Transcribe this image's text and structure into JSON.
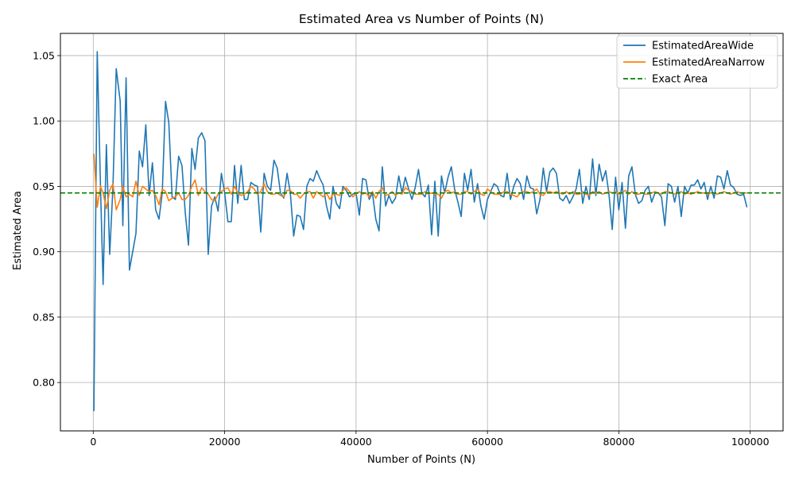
{
  "chart_data": {
    "type": "line",
    "title": "Estimated Area vs Number of Points (N)",
    "xlabel": "Number of Points (N)",
    "ylabel": "Estimated Area",
    "xlim": [
      -5000,
      105000
    ],
    "ylim": [
      0.763,
      1.067
    ],
    "xticks": [
      0,
      20000,
      40000,
      60000,
      80000,
      100000
    ],
    "xtick_labels": [
      "0",
      "20000",
      "40000",
      "60000",
      "80000",
      "100000"
    ],
    "yticks": [
      0.8,
      0.85,
      0.9,
      0.95,
      1.0,
      1.05
    ],
    "ytick_labels": [
      "0.80",
      "0.85",
      "0.90",
      "0.95",
      "1.00",
      "1.05"
    ],
    "grid": true,
    "legend_position": "top-right",
    "series": [
      {
        "name": "EstimatedAreaWide",
        "color": "#1f77b4",
        "style": "solid",
        "x": [
          100,
          600,
          1100,
          1500,
          2000,
          2500,
          3000,
          3500,
          4100,
          4500,
          5000,
          5500,
          6000,
          6500,
          7000,
          7500,
          8000,
          8500,
          9000,
          9500,
          10000,
          10500,
          11000,
          11500,
          12000,
          12500,
          13000,
          13500,
          14000,
          14500,
          15000,
          15500,
          16000,
          16500,
          17000,
          17500,
          18000,
          18500,
          19000,
          19500,
          20000,
          20500,
          21000,
          21500,
          22000,
          22500,
          23000,
          23500,
          24000,
          24500,
          25000,
          25500,
          26000,
          26500,
          27000,
          27500,
          28000,
          28500,
          29000,
          29500,
          30000,
          30500,
          31000,
          31500,
          32000,
          32500,
          33000,
          33500,
          34000,
          34500,
          35000,
          35500,
          36000,
          36500,
          37000,
          37500,
          38000,
          38500,
          39000,
          39500,
          40000,
          40500,
          41000,
          41500,
          42000,
          42500,
          43000,
          43500,
          44000,
          44500,
          45000,
          45500,
          46000,
          46500,
          47000,
          47500,
          48000,
          48500,
          49000,
          49500,
          50000,
          50500,
          51000,
          51500,
          52000,
          52500,
          53000,
          53500,
          54000,
          54500,
          55000,
          55500,
          56000,
          56500,
          57000,
          57500,
          58000,
          58500,
          59000,
          59500,
          60000,
          60500,
          61000,
          61500,
          62000,
          62500,
          63000,
          63500,
          64000,
          64500,
          65000,
          65500,
          66000,
          66500,
          67000,
          67500,
          68000,
          68500,
          69000,
          69500,
          70000,
          70500,
          71000,
          71500,
          72000,
          72500,
          73000,
          73500,
          74000,
          74500,
          75000,
          75500,
          76000,
          76500,
          77000,
          77500,
          78000,
          78500,
          79000,
          79500,
          80000,
          80500,
          81000,
          81500,
          82000,
          82500,
          83000,
          83500,
          84000,
          84500,
          85000,
          85500,
          86000,
          86500,
          87000,
          87500,
          88000,
          88500,
          89000,
          89500,
          90000,
          90500,
          91000,
          91500,
          92000,
          92500,
          93000,
          93500,
          94000,
          94500,
          95000,
          95500,
          96000,
          96500,
          97000,
          97500,
          98000,
          98500,
          99000,
          99500
        ],
        "values": [
          0.778,
          1.053,
          0.95,
          0.875,
          0.982,
          0.898,
          0.95,
          1.04,
          1.015,
          0.92,
          1.033,
          0.886,
          0.9,
          0.914,
          0.977,
          0.965,
          0.997,
          0.943,
          0.968,
          0.932,
          0.925,
          0.945,
          1.015,
          0.999,
          0.942,
          0.94,
          0.973,
          0.966,
          0.93,
          0.905,
          0.979,
          0.963,
          0.987,
          0.991,
          0.985,
          0.898,
          0.935,
          0.942,
          0.931,
          0.96,
          0.945,
          0.923,
          0.923,
          0.966,
          0.937,
          0.966,
          0.94,
          0.94,
          0.953,
          0.951,
          0.95,
          0.915,
          0.96,
          0.95,
          0.947,
          0.97,
          0.964,
          0.945,
          0.941,
          0.96,
          0.945,
          0.912,
          0.928,
          0.927,
          0.917,
          0.95,
          0.956,
          0.954,
          0.962,
          0.956,
          0.951,
          0.935,
          0.925,
          0.95,
          0.937,
          0.933,
          0.95,
          0.947,
          0.942,
          0.944,
          0.945,
          0.928,
          0.956,
          0.955,
          0.94,
          0.945,
          0.925,
          0.916,
          0.965,
          0.935,
          0.943,
          0.937,
          0.941,
          0.958,
          0.945,
          0.957,
          0.948,
          0.94,
          0.949,
          0.963,
          0.945,
          0.942,
          0.951,
          0.913,
          0.954,
          0.912,
          0.958,
          0.945,
          0.957,
          0.965,
          0.948,
          0.938,
          0.927,
          0.96,
          0.947,
          0.963,
          0.938,
          0.952,
          0.935,
          0.925,
          0.94,
          0.946,
          0.952,
          0.95,
          0.943,
          0.942,
          0.96,
          0.94,
          0.95,
          0.956,
          0.952,
          0.94,
          0.958,
          0.949,
          0.948,
          0.929,
          0.94,
          0.964,
          0.946,
          0.961,
          0.964,
          0.96,
          0.941,
          0.939,
          0.943,
          0.937,
          0.942,
          0.948,
          0.963,
          0.937,
          0.95,
          0.94,
          0.971,
          0.943,
          0.967,
          0.954,
          0.962,
          0.944,
          0.917,
          0.957,
          0.932,
          0.953,
          0.918,
          0.958,
          0.965,
          0.944,
          0.937,
          0.939,
          0.947,
          0.95,
          0.938,
          0.945,
          0.945,
          0.942,
          0.92,
          0.952,
          0.95,
          0.938,
          0.95,
          0.927,
          0.95,
          0.945,
          0.951,
          0.951,
          0.955,
          0.948,
          0.953,
          0.94,
          0.95,
          0.941,
          0.958,
          0.957,
          0.948,
          0.962,
          0.951,
          0.949,
          0.944,
          0.943,
          0.944,
          0.934
        ]
      },
      {
        "name": "EstimatedAreaNarrow",
        "color": "#ff7f0e",
        "style": "solid",
        "x": [
          100,
          600,
          1100,
          1500,
          2000,
          2500,
          3000,
          3500,
          4100,
          4500,
          5000,
          5500,
          6000,
          6500,
          7000,
          7500,
          8000,
          8500,
          9000,
          9500,
          10000,
          10500,
          11000,
          11500,
          12000,
          12500,
          13000,
          13500,
          14000,
          14500,
          15000,
          15500,
          16000,
          16500,
          17000,
          17500,
          18000,
          18500,
          19000,
          19500,
          20000,
          20500,
          21000,
          21500,
          22000,
          22500,
          23000,
          23500,
          24000,
          24500,
          25000,
          25500,
          26000,
          26500,
          27000,
          27500,
          28000,
          28500,
          29000,
          29500,
          30000,
          30500,
          31000,
          31500,
          32000,
          32500,
          33000,
          33500,
          34000,
          34500,
          35000,
          35500,
          36000,
          36500,
          37000,
          37500,
          38000,
          38500,
          39000,
          39500,
          40000,
          40500,
          41000,
          41500,
          42000,
          42500,
          43000,
          43500,
          44000,
          44500,
          45000,
          45500,
          46000,
          46500,
          47000,
          47500,
          48000,
          48500,
          49000,
          49500,
          50000,
          50500,
          51000,
          51500,
          52000,
          52500,
          53000,
          53500,
          54000,
          54500,
          55000,
          55500,
          56000,
          56500,
          57000,
          57500,
          58000,
          58500,
          59000,
          59500,
          60000,
          60500,
          61000,
          61500,
          62000,
          62500,
          63000,
          63500,
          64000,
          64500,
          65000,
          65500,
          66000,
          66500,
          67000,
          67500,
          68000,
          68500,
          69000,
          69500,
          70000,
          70500,
          71000,
          71500,
          72000,
          72500,
          73000,
          73500,
          74000,
          74500,
          75000,
          75500,
          76000,
          76500,
          77000,
          77500,
          78000,
          78500,
          79000,
          79500,
          80000,
          80500,
          81000,
          81500,
          82000,
          82500,
          83000,
          83500,
          84000,
          84500,
          85000,
          85500,
          86000,
          86500,
          87000,
          87500,
          88000,
          88500,
          89000,
          89500,
          90000,
          90500,
          91000,
          91500,
          92000,
          92500,
          93000,
          93500,
          94000,
          94500,
          95000,
          95500,
          96000,
          96500,
          97000,
          97500,
          98000,
          98500,
          99000,
          99500
        ],
        "values": [
          0.975,
          0.934,
          0.95,
          0.945,
          0.933,
          0.947,
          0.952,
          0.932,
          0.94,
          0.95,
          0.942,
          0.944,
          0.942,
          0.954,
          0.943,
          0.95,
          0.948,
          0.946,
          0.947,
          0.943,
          0.936,
          0.948,
          0.946,
          0.939,
          0.941,
          0.942,
          0.945,
          0.94,
          0.94,
          0.943,
          0.95,
          0.955,
          0.943,
          0.949,
          0.946,
          0.944,
          0.94,
          0.939,
          0.944,
          0.946,
          0.948,
          0.949,
          0.944,
          0.95,
          0.945,
          0.943,
          0.944,
          0.946,
          0.95,
          0.948,
          0.944,
          0.946,
          0.952,
          0.946,
          0.944,
          0.944,
          0.945,
          0.943,
          0.942,
          0.947,
          0.947,
          0.944,
          0.944,
          0.941,
          0.944,
          0.946,
          0.946,
          0.941,
          0.946,
          0.944,
          0.942,
          0.945,
          0.94,
          0.944,
          0.944,
          0.943,
          0.947,
          0.949,
          0.946,
          0.942,
          0.944,
          0.946,
          0.944,
          0.945,
          0.942,
          0.946,
          0.941,
          0.946,
          0.949,
          0.943,
          0.944,
          0.946,
          0.943,
          0.945,
          0.944,
          0.949,
          0.947,
          0.946,
          0.944,
          0.944,
          0.944,
          0.946,
          0.944,
          0.945,
          0.944,
          0.944,
          0.941,
          0.946,
          0.947,
          0.945,
          0.946,
          0.944,
          0.944,
          0.946,
          0.946,
          0.944,
          0.946,
          0.948,
          0.944,
          0.943,
          0.948,
          0.946,
          0.944,
          0.944,
          0.944,
          0.946,
          0.946,
          0.944,
          0.943,
          0.942,
          0.945,
          0.946,
          0.946,
          0.945,
          0.946,
          0.948,
          0.944,
          0.943,
          0.946,
          0.946,
          0.945,
          0.946,
          0.945,
          0.944,
          0.946,
          0.944,
          0.946,
          0.944,
          0.944,
          0.946,
          0.944,
          0.943,
          0.946,
          0.945,
          0.946,
          0.944,
          0.945,
          0.946,
          0.945,
          0.946,
          0.944,
          0.945,
          0.947,
          0.944,
          0.946,
          0.944,
          0.944,
          0.945,
          0.944,
          0.944,
          0.945,
          0.946,
          0.945,
          0.944,
          0.946,
          0.946,
          0.945,
          0.944,
          0.945,
          0.946,
          0.944,
          0.945,
          0.944,
          0.945,
          0.946,
          0.945,
          0.945,
          0.944,
          0.945,
          0.945,
          0.944,
          0.945,
          0.946,
          0.945,
          0.944,
          0.945,
          0.946,
          0.945,
          0.945,
          0.945
        ]
      },
      {
        "name": "Exact Area",
        "color": "#008000",
        "style": "dashed",
        "y_constant": 0.945
      }
    ]
  }
}
